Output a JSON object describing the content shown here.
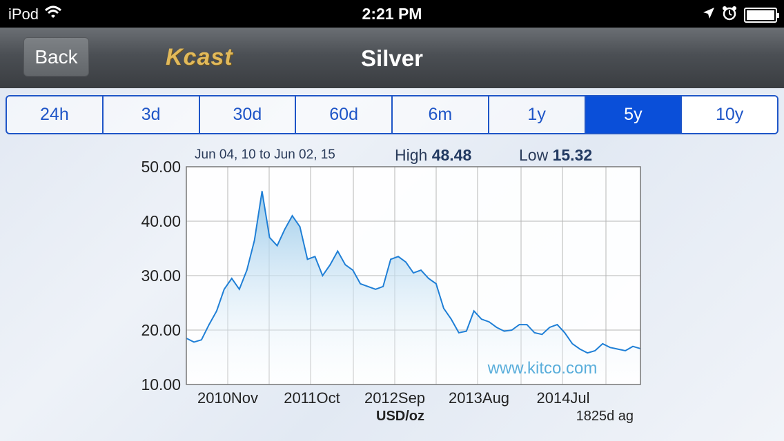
{
  "status_bar": {
    "carrier": "iPod",
    "time": "2:21 PM"
  },
  "nav": {
    "back_label": "Back",
    "logo": "Kcast",
    "title": "Silver"
  },
  "tabs": [
    {
      "label": "24h",
      "active": false
    },
    {
      "label": "3d",
      "active": false
    },
    {
      "label": "30d",
      "active": false
    },
    {
      "label": "60d",
      "active": false
    },
    {
      "label": "6m",
      "active": false
    },
    {
      "label": "1y",
      "active": false
    },
    {
      "label": "5y",
      "active": true
    },
    {
      "label": "10y",
      "active": false
    }
  ],
  "chart_header": {
    "date_range": "Jun 04, 10 to Jun 02, 15",
    "high_label": "High",
    "high_value": "48.48",
    "low_label": "Low",
    "low_value": "15.32"
  },
  "chart_data": {
    "type": "area",
    "ylim": [
      10,
      50
    ],
    "y_ticks": [
      "50.00",
      "40.00",
      "30.00",
      "20.00",
      "10.00"
    ],
    "x_tick_labels": [
      "2010Nov",
      "2011Oct",
      "2012Sep",
      "2013Aug",
      "2014Jul"
    ],
    "ylabel": "USD/oz",
    "footer_note": "1825d ag",
    "watermark": "www.kitco.com",
    "line_color": "#1f7fd6",
    "fill_color": "#9ccbea",
    "x": [
      "2010-06",
      "2010-07",
      "2010-08",
      "2010-09",
      "2010-10",
      "2010-11",
      "2010-12",
      "2011-01",
      "2011-02",
      "2011-03",
      "2011-04",
      "2011-05",
      "2011-06",
      "2011-07",
      "2011-08",
      "2011-09",
      "2011-10",
      "2011-11",
      "2011-12",
      "2012-01",
      "2012-02",
      "2012-03",
      "2012-04",
      "2012-05",
      "2012-06",
      "2012-07",
      "2012-08",
      "2012-09",
      "2012-10",
      "2012-11",
      "2012-12",
      "2013-01",
      "2013-02",
      "2013-03",
      "2013-04",
      "2013-05",
      "2013-06",
      "2013-07",
      "2013-08",
      "2013-09",
      "2013-10",
      "2013-11",
      "2013-12",
      "2014-01",
      "2014-02",
      "2014-03",
      "2014-04",
      "2014-05",
      "2014-06",
      "2014-07",
      "2014-08",
      "2014-09",
      "2014-10",
      "2014-11",
      "2014-12",
      "2015-01",
      "2015-02",
      "2015-03",
      "2015-04",
      "2015-05",
      "2015-06"
    ],
    "values": [
      18.5,
      17.8,
      18.2,
      21.0,
      23.5,
      27.5,
      29.5,
      27.5,
      31.0,
      36.5,
      45.5,
      37.0,
      35.5,
      38.5,
      41.0,
      39.0,
      33.0,
      33.5,
      30.0,
      32.0,
      34.5,
      32.0,
      31.0,
      28.5,
      28.0,
      27.5,
      28.0,
      33.0,
      33.5,
      32.5,
      30.5,
      31.0,
      29.5,
      28.5,
      24.0,
      22.0,
      19.5,
      19.8,
      23.5,
      22.0,
      21.5,
      20.5,
      19.8,
      20.0,
      21.0,
      21.0,
      19.5,
      19.2,
      20.5,
      21.0,
      19.5,
      17.5,
      16.5,
      15.8,
      16.2,
      17.5,
      16.8,
      16.5,
      16.2,
      17.0,
      16.6
    ]
  }
}
